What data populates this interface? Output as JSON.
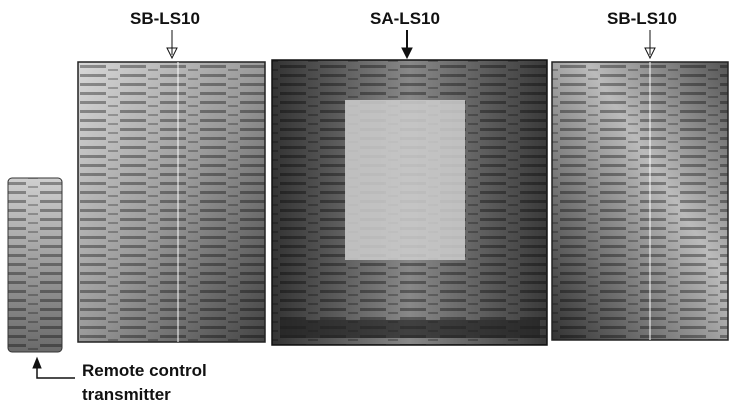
{
  "labels": [
    "SB-LS10",
    "SA-LS10",
    "SB-LS10"
  ],
  "callout": [
    "Remote control",
    "transmitter"
  ]
}
